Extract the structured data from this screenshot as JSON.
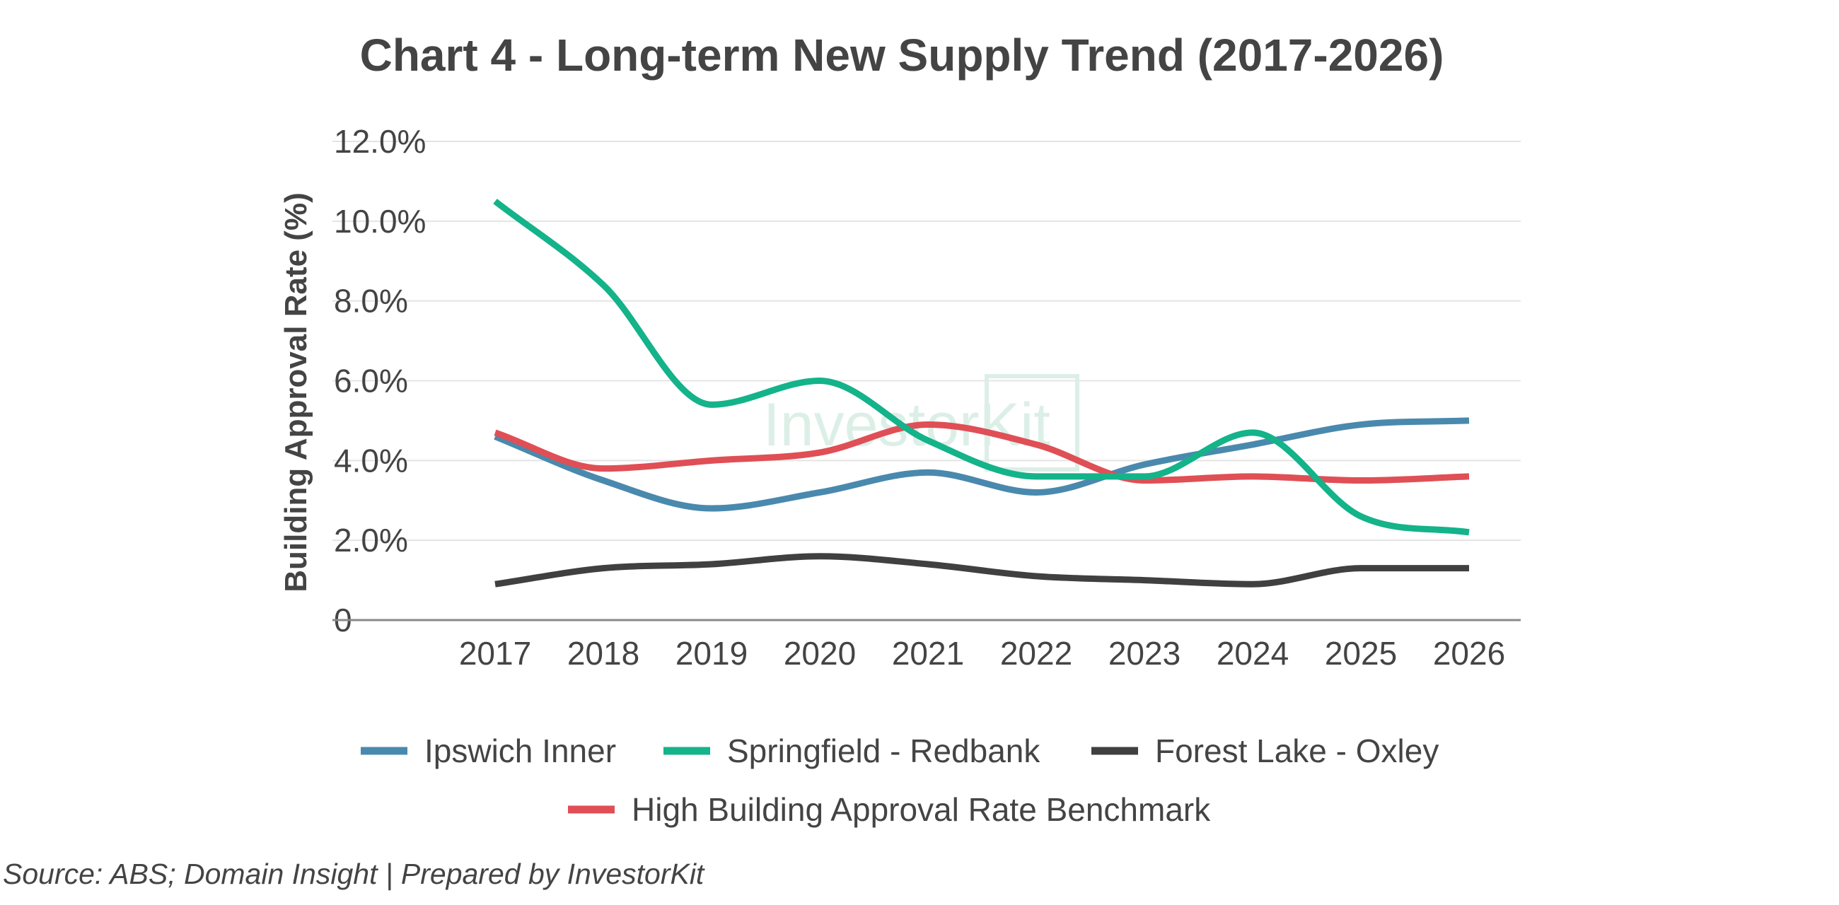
{
  "chart_data": {
    "type": "line",
    "title": "Chart 4 - Long-term New Supply Trend (2017-2026)",
    "xlabel": "",
    "ylabel": "Building Approval Rate (%)",
    "categories": [
      "2017",
      "2018",
      "2019",
      "2020",
      "2021",
      "2022",
      "2023",
      "2024",
      "2025",
      "2026"
    ],
    "ylim": [
      0,
      12
    ],
    "yticks": [
      0,
      2,
      4,
      6,
      8,
      10,
      12
    ],
    "ytick_labels": [
      "0",
      "2.0%",
      "4.0%",
      "6.0%",
      "8.0%",
      "10.0%",
      "12.0%"
    ],
    "grid": true,
    "legend_position": "bottom",
    "series": [
      {
        "name": "Ipswich Inner",
        "color": "#4a89ae",
        "values": [
          4.6,
          3.5,
          2.8,
          3.2,
          3.7,
          3.2,
          3.9,
          4.4,
          4.9,
          5.0
        ]
      },
      {
        "name": "Springfield - Redbank",
        "color": "#14b38a",
        "values": [
          10.5,
          8.4,
          5.4,
          6.0,
          4.5,
          3.6,
          3.6,
          4.7,
          2.6,
          2.2
        ]
      },
      {
        "name": "Forest Lake - Oxley",
        "color": "#404040",
        "values": [
          0.9,
          1.3,
          1.4,
          1.6,
          1.4,
          1.1,
          1.0,
          0.9,
          1.3,
          1.3
        ]
      },
      {
        "name": "High Building Approval Rate Benchmark",
        "color": "#df4f55",
        "values": [
          4.7,
          3.8,
          4.0,
          4.2,
          4.9,
          4.4,
          3.5,
          3.6,
          3.5,
          3.6
        ]
      }
    ]
  },
  "watermark": "InvestorKit",
  "source": "Source: ABS; Domain Insight | Prepared by InvestorKit"
}
